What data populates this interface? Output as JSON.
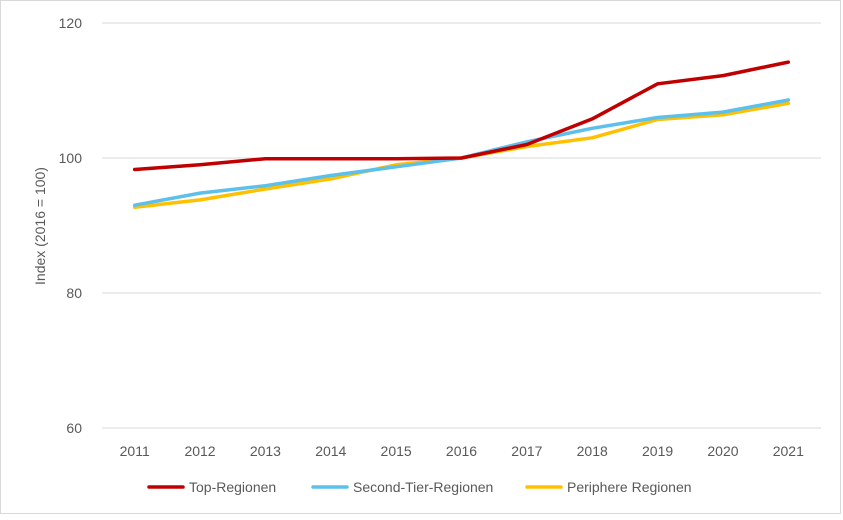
{
  "chart_data": {
    "type": "line",
    "title": "",
    "xlabel": "",
    "ylabel": "Index (2016 = 100)",
    "x": [
      "2011",
      "2012",
      "2013",
      "2014",
      "2015",
      "2016",
      "2017",
      "2018",
      "2019",
      "2020",
      "2021"
    ],
    "ylim": [
      60,
      120
    ],
    "yticks": [
      "60",
      "80",
      "100",
      "120"
    ],
    "grid": "horizontal",
    "legend_position": "bottom",
    "series": [
      {
        "name": "Top-Regionen",
        "color": "#c00000",
        "values": [
          98.3,
          99.0,
          99.9,
          99.9,
          99.9,
          100.0,
          102.0,
          105.8,
          111.0,
          112.2,
          114.2
        ]
      },
      {
        "name": "Second-Tier-Regionen",
        "color": "#5bc0eb",
        "values": [
          93.0,
          94.8,
          95.9,
          97.4,
          98.7,
          100.0,
          102.4,
          104.4,
          106.0,
          106.8,
          108.6
        ]
      },
      {
        "name": "Periphere Regionen",
        "color": "#ffc000",
        "values": [
          92.7,
          93.8,
          95.4,
          96.9,
          99.0,
          100.0,
          101.7,
          103.0,
          105.7,
          106.4,
          108.1
        ]
      }
    ]
  }
}
